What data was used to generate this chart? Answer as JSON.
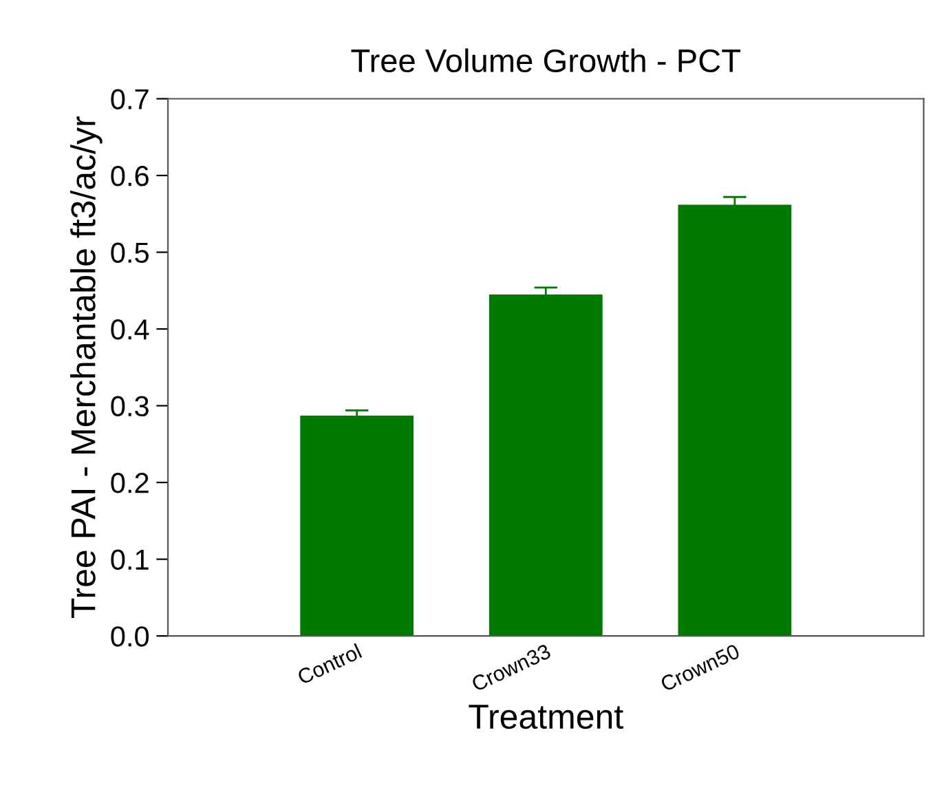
{
  "chart_data": {
    "type": "bar",
    "title": "Tree Volume Growth - PCT",
    "xlabel": "Treatment",
    "ylabel": "Tree PAI - Merchantable ft3/ac/yr",
    "categories": [
      "Control",
      "Crown33",
      "Crown50"
    ],
    "values": [
      0.287,
      0.445,
      0.562
    ],
    "errors": [
      0.007,
      0.009,
      0.01
    ],
    "color": "#007a00",
    "ylim": [
      0,
      0.7
    ],
    "yticks": [
      {
        "value": 0,
        "label": "0.0"
      },
      0.1,
      0.2,
      0.3,
      0.4,
      0.5,
      0.6,
      0.7
    ],
    "grid": false
  }
}
